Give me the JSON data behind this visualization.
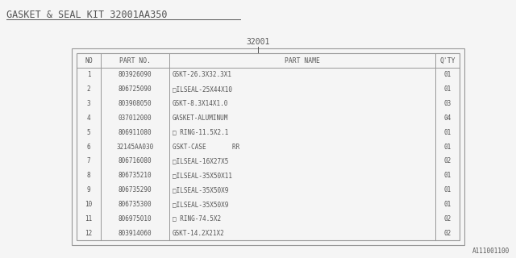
{
  "title": "GASKET & SEAL KIT 32001AA350",
  "part_label": "32001",
  "bg_color": "#f5f5f5",
  "text_color": "#555555",
  "border_color": "#999999",
  "watermark": "A111001100",
  "columns": [
    "NO",
    "PART NO.",
    "PART NAME",
    "Q'TY"
  ],
  "rows": [
    [
      "1",
      "803926090",
      "GSKT-26.3X32.3X1",
      "01"
    ],
    [
      "2",
      "806725090",
      "□ILSEAL-25X44X10",
      "01"
    ],
    [
      "3",
      "803908050",
      "GSKT-8.3X14X1.0",
      "03"
    ],
    [
      "4",
      "037012000",
      "GASKET-ALUMINUM",
      "04"
    ],
    [
      "5",
      "806911080",
      "□ RING-11.5X2.1",
      "01"
    ],
    [
      "6",
      "32145AA030",
      "GSKT-CASE       RR",
      "01"
    ],
    [
      "7",
      "806716080",
      "□ILSEAL-16X27X5",
      "02"
    ],
    [
      "8",
      "806735210",
      "□ILSEAL-35X50X11",
      "01"
    ],
    [
      "9",
      "806735290",
      "□ILSEAL-35X50X9",
      "01"
    ],
    [
      "10",
      "806735300",
      "□ILSEAL-35X50X9",
      "01"
    ],
    [
      "11",
      "806975010",
      "□ RING-74.5X2",
      "02"
    ],
    [
      "12",
      "803914060",
      "GSKT-14.2X21X2",
      "02"
    ]
  ]
}
